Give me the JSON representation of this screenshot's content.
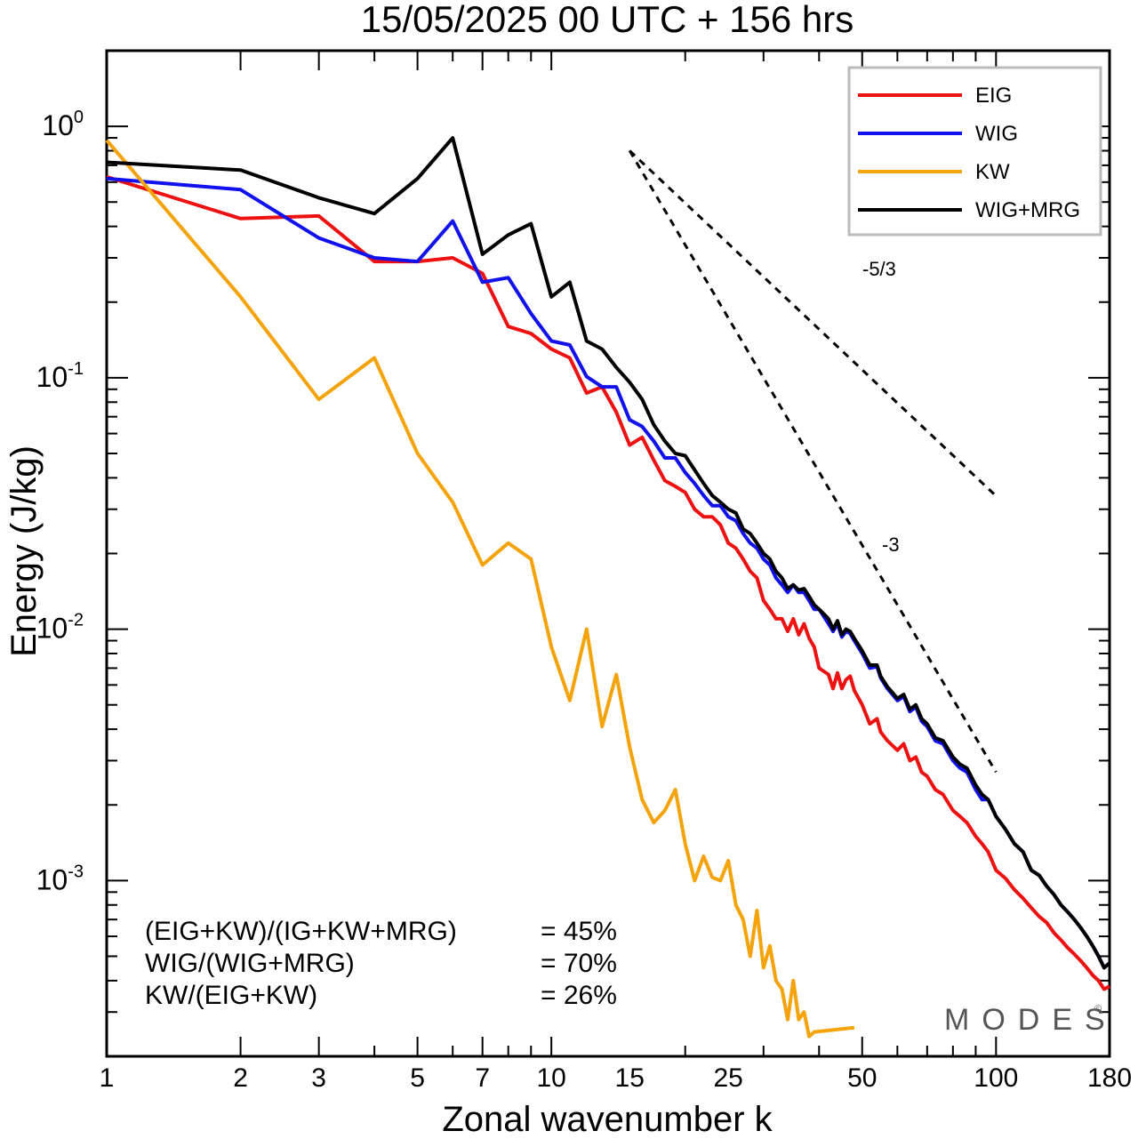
{
  "chart_data": {
    "type": "line",
    "title": "15/05/2025  00 UTC  + 156 hrs",
    "xlabel": "Zonal wavenumber k",
    "ylabel": "Energy (J/kg)",
    "xscale": "log",
    "yscale": "log",
    "xlim": [
      1,
      180
    ],
    "ylim": [
      0.0002,
      2.0
    ],
    "x_ticks": [
      1,
      2,
      3,
      5,
      7,
      10,
      15,
      25,
      50,
      100,
      180
    ],
    "y_ticks": [
      {
        "value": 1,
        "base": "10",
        "exp": "0"
      },
      {
        "value": 0.1,
        "base": "10",
        "exp": "-1"
      },
      {
        "value": 0.01,
        "base": "10",
        "exp": "-2"
      },
      {
        "value": 0.001,
        "base": "10",
        "exp": "-3"
      }
    ],
    "legend": {
      "position": "top-right"
    },
    "series": [
      {
        "name": "EIG",
        "color": "#ee1111",
        "points": [
          [
            1,
            0.63
          ],
          [
            2,
            0.43
          ],
          [
            3,
            0.44
          ],
          [
            4,
            0.29
          ],
          [
            5,
            0.29
          ],
          [
            6,
            0.3
          ],
          [
            7,
            0.26
          ],
          [
            8,
            0.16
          ],
          [
            9,
            0.15
          ],
          [
            10,
            0.13
          ],
          [
            11,
            0.12
          ],
          [
            12,
            0.087
          ],
          [
            13,
            0.092
          ],
          [
            14,
            0.073
          ],
          [
            15,
            0.054
          ],
          [
            16,
            0.058
          ],
          [
            17,
            0.047
          ],
          [
            18,
            0.039
          ],
          [
            19,
            0.037
          ],
          [
            20,
            0.035
          ],
          [
            21,
            0.03
          ],
          [
            22,
            0.028
          ],
          [
            23,
            0.028
          ],
          [
            24,
            0.026
          ],
          [
            25,
            0.022
          ],
          [
            26,
            0.021
          ],
          [
            27,
            0.019
          ],
          [
            28,
            0.017
          ],
          [
            29,
            0.016
          ],
          [
            30,
            0.013
          ],
          [
            31,
            0.012
          ],
          [
            32,
            0.011
          ],
          [
            33,
            0.011
          ],
          [
            34,
            0.0098
          ],
          [
            35,
            0.011
          ],
          [
            36,
            0.0095
          ],
          [
            37,
            0.0105
          ],
          [
            38,
            0.0092
          ],
          [
            39,
            0.0085
          ],
          [
            40,
            0.007
          ],
          [
            42,
            0.0066
          ],
          [
            43,
            0.0058
          ],
          [
            44,
            0.0067
          ],
          [
            45,
            0.0058
          ],
          [
            46,
            0.0063
          ],
          [
            47,
            0.0065
          ],
          [
            48,
            0.0057
          ],
          [
            50,
            0.005
          ],
          [
            52,
            0.0042
          ],
          [
            54,
            0.0044
          ],
          [
            55,
            0.0039
          ],
          [
            57,
            0.0036
          ],
          [
            60,
            0.0033
          ],
          [
            62,
            0.0035
          ],
          [
            64,
            0.003
          ],
          [
            66,
            0.0031
          ],
          [
            68,
            0.0027
          ],
          [
            70,
            0.0026
          ],
          [
            73,
            0.0023
          ],
          [
            76,
            0.0022
          ],
          [
            80,
            0.0019
          ],
          [
            83,
            0.0018
          ],
          [
            86,
            0.0017
          ],
          [
            90,
            0.0015
          ],
          [
            93,
            0.0014
          ],
          [
            96,
            0.0013
          ],
          [
            100,
            0.0011
          ],
          [
            105,
            0.00102
          ],
          [
            110,
            0.00092
          ],
          [
            115,
            0.00085
          ],
          [
            120,
            0.00078
          ],
          [
            125,
            0.00072
          ],
          [
            130,
            0.00068
          ],
          [
            135,
            0.00062
          ],
          [
            140,
            0.00058
          ],
          [
            145,
            0.00054
          ],
          [
            150,
            0.00051
          ],
          [
            155,
            0.00048
          ],
          [
            160,
            0.00045
          ],
          [
            165,
            0.00042
          ],
          [
            170,
            0.0004
          ],
          [
            175,
            0.00037
          ],
          [
            180,
            0.00038
          ]
        ]
      },
      {
        "name": "WIG",
        "color": "#1111ee",
        "points": [
          [
            1,
            0.62
          ],
          [
            2,
            0.56
          ],
          [
            3,
            0.36
          ],
          [
            4,
            0.3
          ],
          [
            5,
            0.29
          ],
          [
            6,
            0.42
          ],
          [
            7,
            0.24
          ],
          [
            8,
            0.25
          ],
          [
            9,
            0.18
          ],
          [
            10,
            0.14
          ],
          [
            11,
            0.135
          ],
          [
            12,
            0.101
          ],
          [
            13,
            0.092
          ],
          [
            14,
            0.092
          ],
          [
            15,
            0.068
          ],
          [
            16,
            0.064
          ],
          [
            17,
            0.056
          ],
          [
            18,
            0.048
          ],
          [
            19,
            0.048
          ],
          [
            20,
            0.042
          ],
          [
            21,
            0.038
          ],
          [
            22,
            0.034
          ],
          [
            23,
            0.031
          ],
          [
            24,
            0.031
          ],
          [
            25,
            0.028
          ],
          [
            26,
            0.027
          ],
          [
            27,
            0.024
          ],
          [
            28,
            0.022
          ],
          [
            29,
            0.021
          ],
          [
            30,
            0.019
          ],
          [
            31,
            0.018
          ],
          [
            32,
            0.016
          ],
          [
            33,
            0.015
          ],
          [
            34,
            0.014
          ],
          [
            35,
            0.015
          ],
          [
            36,
            0.014
          ],
          [
            37,
            0.014
          ],
          [
            38,
            0.013
          ],
          [
            39,
            0.012
          ],
          [
            40,
            0.012
          ],
          [
            42,
            0.0105
          ],
          [
            43,
            0.0098
          ],
          [
            44,
            0.0105
          ],
          [
            45,
            0.0093
          ],
          [
            46,
            0.0098
          ],
          [
            47,
            0.0096
          ],
          [
            48,
            0.009
          ],
          [
            50,
            0.008
          ],
          [
            52,
            0.007
          ],
          [
            54,
            0.0071
          ],
          [
            55,
            0.0064
          ],
          [
            57,
            0.0058
          ],
          [
            60,
            0.0052
          ],
          [
            62,
            0.0054
          ],
          [
            64,
            0.0047
          ],
          [
            66,
            0.0049
          ],
          [
            68,
            0.0043
          ],
          [
            70,
            0.0041
          ],
          [
            73,
            0.0036
          ],
          [
            76,
            0.0035
          ],
          [
            80,
            0.003
          ],
          [
            83,
            0.0028
          ],
          [
            86,
            0.0027
          ],
          [
            90,
            0.0023
          ],
          [
            93,
            0.0021
          ],
          [
            96,
            0.0021
          ],
          [
            100,
            0.0018
          ],
          [
            105,
            0.0016
          ],
          [
            110,
            0.0014
          ],
          [
            115,
            0.0013
          ],
          [
            120,
            0.0011
          ],
          [
            125,
            0.00105
          ],
          [
            130,
            0.00095
          ],
          [
            135,
            0.00088
          ],
          [
            140,
            0.0008
          ],
          [
            145,
            0.00075
          ],
          [
            150,
            0.0007
          ],
          [
            155,
            0.00065
          ],
          [
            160,
            0.0006
          ],
          [
            165,
            0.00055
          ],
          [
            170,
            0.0005
          ],
          [
            175,
            0.00045
          ],
          [
            180,
            0.00047
          ]
        ]
      },
      {
        "name": "KW",
        "color": "#f5a30a",
        "points": [
          [
            1,
            0.88
          ],
          [
            2,
            0.21
          ],
          [
            3,
            0.082
          ],
          [
            4,
            0.12
          ],
          [
            5,
            0.05
          ],
          [
            6,
            0.032
          ],
          [
            7,
            0.018
          ],
          [
            8,
            0.022
          ],
          [
            9,
            0.019
          ],
          [
            10,
            0.0085
          ],
          [
            11,
            0.0052
          ],
          [
            12,
            0.01
          ],
          [
            13,
            0.0041
          ],
          [
            14,
            0.0066
          ],
          [
            15,
            0.0034
          ],
          [
            16,
            0.0021
          ],
          [
            17,
            0.0017
          ],
          [
            18,
            0.0019
          ],
          [
            19,
            0.0023
          ],
          [
            20,
            0.0014
          ],
          [
            21,
            0.001
          ],
          [
            22,
            0.00125
          ],
          [
            23,
            0.00103
          ],
          [
            24,
            0.001
          ],
          [
            25,
            0.0012
          ],
          [
            26,
            0.0008
          ],
          [
            27,
            0.0007
          ],
          [
            28,
            0.0005
          ],
          [
            29,
            0.00076
          ],
          [
            30,
            0.00045
          ],
          [
            31,
            0.00055
          ],
          [
            32,
            0.0004
          ],
          [
            33,
            0.00037
          ],
          [
            34,
            0.00028
          ],
          [
            35,
            0.0004
          ],
          [
            36,
            0.00028
          ],
          [
            37,
            0.0003
          ],
          [
            38,
            0.00024
          ],
          [
            39,
            0.00025
          ],
          [
            40,
            0.00019
          ],
          [
            41,
            0.00018
          ],
          [
            42,
            0.00017
          ],
          [
            43,
            0.00016
          ],
          [
            44,
            0.00015
          ],
          [
            45,
            0.00014
          ],
          [
            46,
            0.00013
          ],
          [
            47,
            0.00016
          ],
          [
            48,
            0.00026
          ],
          [
            49,
            0.00017
          ]
        ]
      },
      {
        "name": "WIG+MRG",
        "color": "#000000",
        "points": [
          [
            1,
            0.72
          ],
          [
            2,
            0.67
          ],
          [
            3,
            0.52
          ],
          [
            4,
            0.45
          ],
          [
            5,
            0.62
          ],
          [
            6,
            0.9
          ],
          [
            7,
            0.31
          ],
          [
            8,
            0.37
          ],
          [
            9,
            0.41
          ],
          [
            10,
            0.21
          ],
          [
            11,
            0.24
          ],
          [
            12,
            0.14
          ],
          [
            13,
            0.13
          ],
          [
            14,
            0.11
          ],
          [
            15,
            0.096
          ],
          [
            16,
            0.082
          ],
          [
            17,
            0.065
          ],
          [
            18,
            0.056
          ],
          [
            19,
            0.05
          ],
          [
            20,
            0.049
          ],
          [
            21,
            0.043
          ],
          [
            22,
            0.038
          ],
          [
            23,
            0.034
          ],
          [
            24,
            0.032
          ],
          [
            25,
            0.03
          ],
          [
            26,
            0.029
          ],
          [
            27,
            0.025
          ],
          [
            28,
            0.024
          ],
          [
            29,
            0.022
          ],
          [
            30,
            0.02
          ],
          [
            31,
            0.019
          ],
          [
            32,
            0.017
          ],
          [
            33,
            0.016
          ],
          [
            34,
            0.0145
          ],
          [
            35,
            0.015
          ],
          [
            36,
            0.0143
          ],
          [
            37,
            0.0145
          ],
          [
            38,
            0.0135
          ],
          [
            39,
            0.0125
          ],
          [
            40,
            0.012
          ],
          [
            42,
            0.011
          ],
          [
            43,
            0.01
          ],
          [
            44,
            0.0108
          ],
          [
            45,
            0.0095
          ],
          [
            46,
            0.01
          ],
          [
            47,
            0.0098
          ],
          [
            48,
            0.0092
          ],
          [
            50,
            0.0082
          ],
          [
            52,
            0.0072
          ],
          [
            54,
            0.0072
          ],
          [
            55,
            0.0065
          ],
          [
            57,
            0.0059
          ],
          [
            60,
            0.0053
          ],
          [
            62,
            0.0055
          ],
          [
            64,
            0.0048
          ],
          [
            66,
            0.005
          ],
          [
            68,
            0.0044
          ],
          [
            70,
            0.0042
          ],
          [
            73,
            0.0037
          ],
          [
            76,
            0.0036
          ],
          [
            80,
            0.0031
          ],
          [
            83,
            0.0029
          ],
          [
            86,
            0.0028
          ],
          [
            90,
            0.0024
          ],
          [
            93,
            0.0022
          ],
          [
            96,
            0.0021
          ],
          [
            100,
            0.0018
          ],
          [
            105,
            0.0016
          ],
          [
            110,
            0.0014
          ],
          [
            115,
            0.0013
          ],
          [
            120,
            0.0011
          ],
          [
            125,
            0.00105
          ],
          [
            130,
            0.00095
          ],
          [
            135,
            0.00088
          ],
          [
            140,
            0.0008
          ],
          [
            145,
            0.00075
          ],
          [
            150,
            0.0007
          ],
          [
            155,
            0.00065
          ],
          [
            160,
            0.0006
          ],
          [
            165,
            0.00055
          ],
          [
            170,
            0.0005
          ],
          [
            175,
            0.00045
          ],
          [
            180,
            0.00047
          ]
        ]
      }
    ],
    "reference_lines": [
      {
        "label": "-5/3",
        "k_start": 15,
        "e_start": 0.8,
        "k_end": 100,
        "slope": -1.6667
      },
      {
        "label": "-3",
        "k_start": 15,
        "e_start": 0.8,
        "k_end": 100,
        "slope": -3
      }
    ],
    "annotations": [
      {
        "label": "(EIG+KW)/(IG+KW+MRG)",
        "value": "= 45%"
      },
      {
        "label": "WIG/(WIG+MRG)",
        "value": "= 70%"
      },
      {
        "label": "KW/(EIG+KW)",
        "value": "= 26%"
      }
    ],
    "watermark": "MODES",
    "watermark_mark": "©"
  }
}
